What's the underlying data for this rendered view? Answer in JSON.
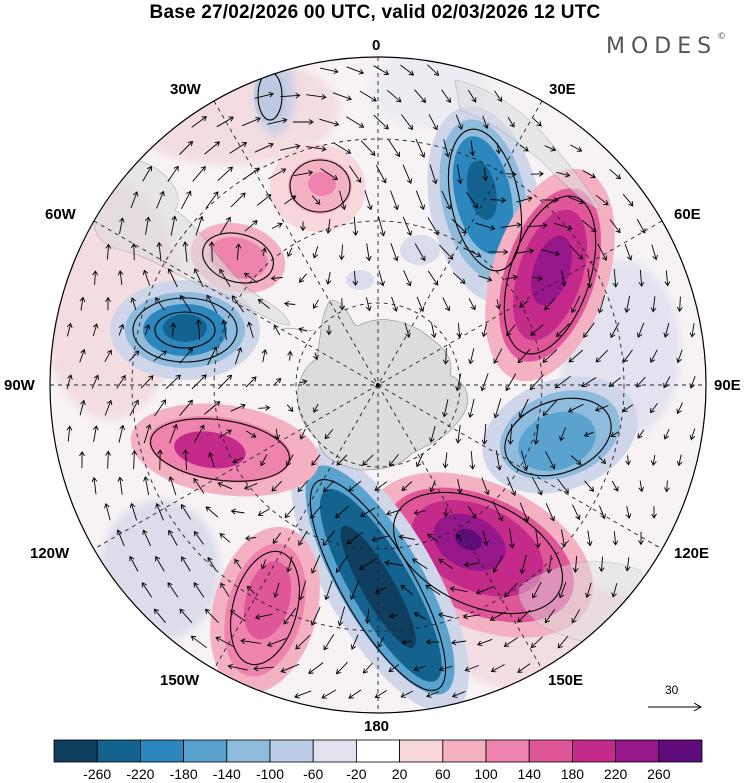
{
  "title": "Base 27/02/2026 00 UTC, valid 02/03/2026 12 UTC",
  "brand": "MODES",
  "brand_mark": "©",
  "longitude_labels": {
    "lon_0": "0",
    "lon_30e": "30E",
    "lon_60e": "60E",
    "lon_90e": "90E",
    "lon_120e": "120E",
    "lon_150e": "150E",
    "lon_180": "180",
    "lon_150w": "150W",
    "lon_120w": "120W",
    "lon_90w": "90W",
    "lon_60w": "60W",
    "lon_30w": "30W"
  },
  "vector_scale_label": "30",
  "colorbar": {
    "ticks": [
      "-260",
      "-220",
      "-180",
      "-140",
      "-100",
      "-60",
      "-20",
      "20",
      "60",
      "100",
      "140",
      "180",
      "220",
      "260"
    ],
    "colors": [
      "#0f3e5e",
      "#14628e",
      "#2b87bd",
      "#5aa3cf",
      "#8fbbdc",
      "#bccde6",
      "#e2e2ef",
      "#ffffff",
      "#f7d7d9",
      "#f3b1c1",
      "#ee83ad",
      "#e05799",
      "#c32a8a",
      "#96178a",
      "#5f0d7a"
    ]
  },
  "colors": {
    "land": "#dcdcdc",
    "grid": "#000000"
  }
}
